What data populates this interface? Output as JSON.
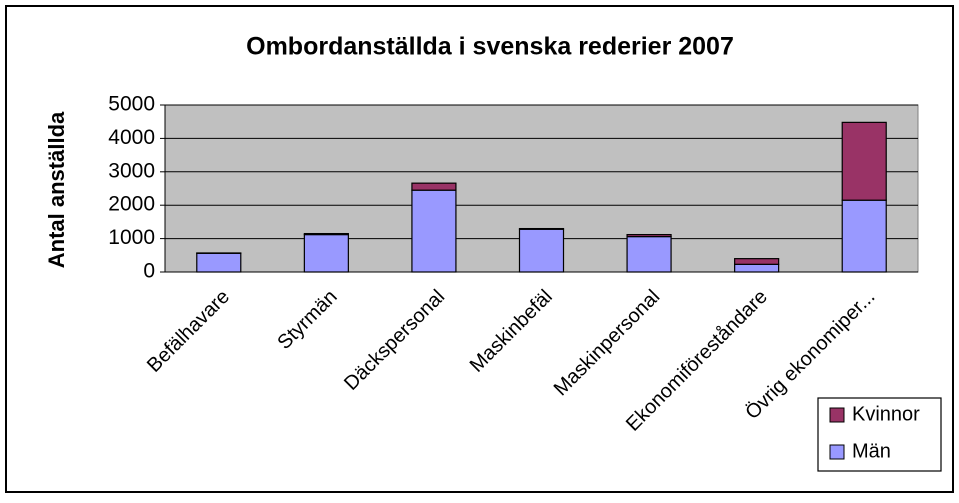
{
  "chart_data": {
    "type": "stacked_bar",
    "title": "Ombordanställda i svenska rederier 2007",
    "y_label": "Antal anställda",
    "categories": [
      "Befälhavare",
      "Styrmän",
      "Däckspersonal",
      "Maskinbefäl",
      "Maskinpersonal",
      "Ekonomiföreståndare",
      "Övrig ekonomiper..."
    ],
    "series": [
      {
        "name": "Män",
        "color": "#9999ff",
        "values": [
          560,
          1120,
          2450,
          1280,
          1060,
          230,
          2150
        ]
      },
      {
        "name": "Kvinnor",
        "color": "#993366",
        "values": [
          10,
          30,
          210,
          20,
          60,
          170,
          2330
        ]
      }
    ],
    "ylim": [
      0,
      5000
    ],
    "yticks": [
      0,
      1000,
      2000,
      3000,
      4000,
      5000
    ],
    "grid": true,
    "legend": "bottom-right"
  }
}
